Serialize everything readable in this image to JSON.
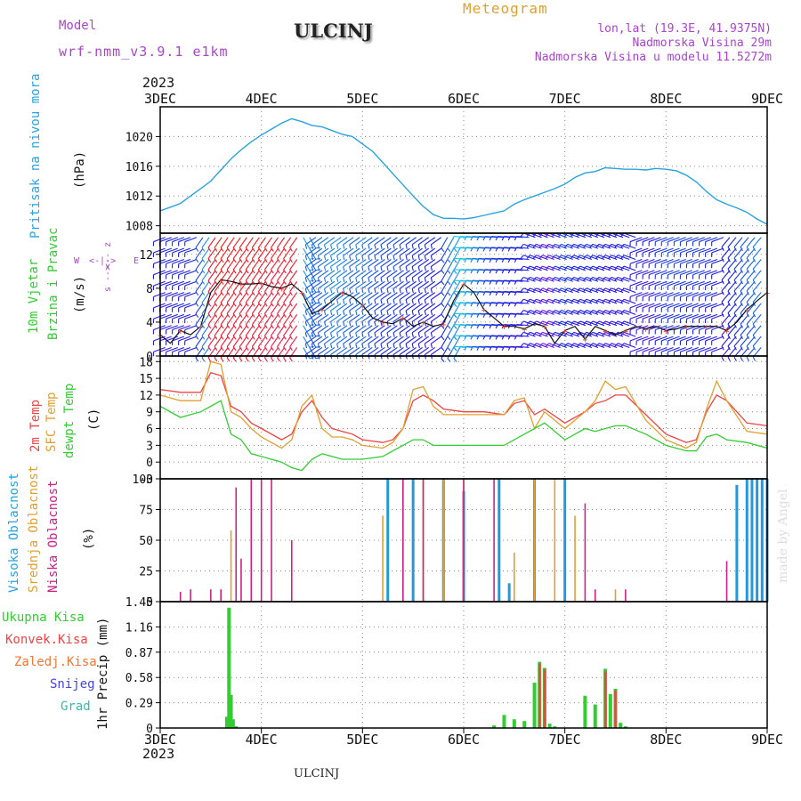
{
  "header": {
    "model_label": "Model",
    "model_name": "wrf-nmm_v3.9.1 e1km",
    "station": "ULCINJ",
    "meteogram": "Meteogram",
    "lonlat": "lon,lat (19.3E, 41.9375N)",
    "elevation": "Nadmorska Visina 29m",
    "model_elevation": "Nadmorska Visina u modelu 11.5272m"
  },
  "footer": {
    "station": "ULCINJ",
    "credit": "made by Angel"
  },
  "colors": {
    "pressure": "#29a3e0",
    "wind_label": "#33cc33",
    "temp2m": "#ee4444",
    "sfc": "#e0a030",
    "dew": "#33cc33",
    "high": "#2299dd",
    "mid": "#e0a030",
    "low": "#cc2288",
    "total": "#33cc33",
    "conv": "#ee4444",
    "frozen": "#ee7733",
    "snow": "#4444dd",
    "grad": "#33bbaa",
    "direction": "#aa44cc"
  },
  "chart_data": [
    {
      "type": "line",
      "panel": "pressure",
      "ylabel": [
        "Pritisak na nivou mora",
        "(hPa)"
      ],
      "x_ticks": [
        "3DEC",
        "4DEC",
        "5DEC",
        "6DEC",
        "7DEC",
        "8DEC",
        "9DEC"
      ],
      "x_year": "2023",
      "xlim": [
        0,
        6
      ],
      "ylim": [
        1007,
        1024
      ],
      "y_ticks": [
        1008,
        1012,
        1016,
        1020
      ],
      "series": [
        {
          "x": [
            0,
            0.1,
            0.2,
            0.3,
            0.4,
            0.5,
            0.6,
            0.7,
            0.8,
            0.9,
            1.0,
            1.1,
            1.2,
            1.3,
            1.4,
            1.5,
            1.6,
            1.7,
            1.8,
            1.9,
            2.0,
            2.1,
            2.2,
            2.3,
            2.4,
            2.5,
            2.6,
            2.7,
            2.8,
            2.9,
            3.0,
            3.1,
            3.2,
            3.3,
            3.4,
            3.5,
            3.6,
            3.7,
            3.8,
            3.9,
            4.0,
            4.1,
            4.2,
            4.3,
            4.4,
            4.5,
            4.6,
            4.7,
            4.8,
            4.9,
            5.0,
            5.1,
            5.2,
            5.3,
            5.4,
            5.5,
            5.6,
            5.7,
            5.8,
            5.9,
            6.0
          ],
          "y": [
            1010,
            1010.5,
            1011,
            1012,
            1013,
            1014,
            1015.5,
            1017,
            1018.2,
            1019.3,
            1020.2,
            1021,
            1021.8,
            1022.4,
            1022,
            1021.5,
            1021.3,
            1020.8,
            1020.3,
            1020,
            1019,
            1018,
            1016.5,
            1015,
            1013.5,
            1012,
            1010.6,
            1009.5,
            1009,
            1009,
            1008.9,
            1009.1,
            1009.4,
            1009.7,
            1010,
            1010.9,
            1011.5,
            1012,
            1012.5,
            1013,
            1013.6,
            1014.5,
            1015.1,
            1015.3,
            1015.8,
            1015.7,
            1015.6,
            1015.6,
            1015.5,
            1015.7,
            1015.6,
            1015.4,
            1014.8,
            1013.9,
            1012.6,
            1011.5,
            1010.9,
            1010.4,
            1009.8,
            1008.9,
            1008.2
          ]
        }
      ]
    },
    {
      "type": "line",
      "panel": "wind",
      "ylabel": [
        "10m Vjetar",
        "Brzina i Pravac",
        "(m/s)"
      ],
      "compass": {
        "top": "<-- z",
        "left": "W",
        "right": "E",
        "mid": "<-|->",
        "bottom": "s -->"
      },
      "ylim": [
        0,
        14.5
      ],
      "y_ticks": [
        0,
        4,
        8,
        12
      ],
      "series": [
        {
          "name": "speed",
          "x": [
            0,
            0.1,
            0.2,
            0.3,
            0.4,
            0.5,
            0.6,
            0.7,
            0.8,
            0.9,
            1.0,
            1.1,
            1.2,
            1.3,
            1.4,
            1.5,
            1.6,
            1.7,
            1.8,
            1.9,
            2.0,
            2.1,
            2.2,
            2.3,
            2.4,
            2.5,
            2.6,
            2.7,
            2.8,
            2.9,
            3.0,
            3.1,
            3.2,
            3.3,
            3.4,
            3.5,
            3.6,
            3.7,
            3.8,
            3.9,
            4.0,
            4.1,
            4.2,
            4.3,
            4.4,
            4.5,
            4.6,
            4.7,
            4.8,
            4.9,
            5.0,
            5.1,
            5.2,
            5.3,
            5.4,
            5.5,
            5.6,
            5.7,
            5.8,
            5.9,
            6.0
          ],
          "y": [
            2.5,
            1.5,
            3.0,
            2.5,
            3.5,
            7.5,
            9.0,
            8.8,
            8.5,
            8.5,
            8.6,
            8.2,
            8.0,
            8.5,
            7.5,
            5.0,
            5.5,
            6.5,
            7.5,
            7.0,
            6.0,
            4.5,
            4.0,
            3.8,
            4.5,
            3.5,
            4.0,
            3.5,
            3.8,
            6.5,
            8.5,
            7.5,
            5.5,
            4.5,
            3.5,
            3.5,
            3.2,
            3.8,
            3.5,
            1.5,
            3.0,
            3.5,
            2.0,
            3.5,
            3.0,
            2.5,
            3.0,
            3.5,
            3.2,
            3.5,
            3.0,
            3.2,
            3.5,
            3.5,
            3.5,
            3.5,
            3.0,
            4.0,
            5.5,
            6.5,
            7.5
          ]
        }
      ]
    },
    {
      "type": "line",
      "panel": "temperature",
      "ylabel": [
        "2m Temp",
        "SFC Temp",
        "dewpt Temp",
        "(C)"
      ],
      "ylim": [
        -3,
        19
      ],
      "y_ticks": [
        -3,
        0,
        3,
        6,
        9,
        12,
        15,
        18
      ],
      "series": [
        {
          "name": "2m Temp",
          "x": [
            0,
            0.2,
            0.4,
            0.5,
            0.6,
            0.7,
            0.8,
            0.9,
            1.0,
            1.2,
            1.3,
            1.4,
            1.5,
            1.6,
            1.7,
            1.8,
            1.9,
            2.0,
            2.2,
            2.3,
            2.4,
            2.5,
            2.6,
            2.7,
            2.8,
            3.0,
            3.2,
            3.4,
            3.5,
            3.6,
            3.7,
            3.8,
            4.0,
            4.2,
            4.3,
            4.4,
            4.5,
            4.6,
            4.8,
            5.0,
            5.2,
            5.3,
            5.4,
            5.5,
            5.6,
            5.8,
            6.0
          ],
          "y": [
            13,
            12.5,
            12.5,
            16,
            15.5,
            10,
            9,
            7,
            6,
            4,
            5,
            9,
            11,
            8,
            6,
            5.5,
            5,
            4,
            3.5,
            4,
            6,
            11,
            12,
            11,
            9.5,
            9,
            9,
            8.5,
            10.5,
            11,
            8.5,
            9.5,
            7,
            9,
            10.5,
            11,
            12,
            12,
            8.5,
            5,
            3.5,
            4,
            9,
            12,
            11,
            7,
            6.5
          ]
        },
        {
          "name": "SFC Temp",
          "x": [
            0,
            0.2,
            0.4,
            0.5,
            0.6,
            0.7,
            0.8,
            0.9,
            1.0,
            1.2,
            1.3,
            1.4,
            1.5,
            1.6,
            1.7,
            1.8,
            1.9,
            2.0,
            2.2,
            2.3,
            2.4,
            2.5,
            2.6,
            2.7,
            2.8,
            3.0,
            3.2,
            3.4,
            3.5,
            3.6,
            3.7,
            3.8,
            4.0,
            4.2,
            4.3,
            4.4,
            4.5,
            4.6,
            4.8,
            5.0,
            5.2,
            5.3,
            5.4,
            5.5,
            5.6,
            5.8,
            6.0
          ],
          "y": [
            12,
            11,
            11,
            18,
            17.5,
            9,
            8,
            6,
            4.5,
            2.5,
            4,
            10,
            12,
            6,
            4.5,
            4.5,
            4,
            3,
            2.5,
            3.5,
            6,
            13,
            13.5,
            10,
            8.5,
            8.5,
            8.5,
            8.5,
            11,
            11.5,
            6,
            9,
            6,
            9,
            11,
            14.5,
            13,
            13.5,
            7.5,
            4,
            2.5,
            3.5,
            9.5,
            14.5,
            11,
            5.5,
            5
          ]
        },
        {
          "name": "dewpt Temp",
          "x": [
            0,
            0.2,
            0.4,
            0.5,
            0.6,
            0.7,
            0.8,
            0.9,
            1.0,
            1.2,
            1.3,
            1.4,
            1.5,
            1.6,
            1.7,
            1.8,
            1.9,
            2.0,
            2.2,
            2.3,
            2.4,
            2.5,
            2.6,
            2.7,
            2.8,
            3.0,
            3.2,
            3.4,
            3.5,
            3.6,
            3.7,
            3.8,
            4.0,
            4.2,
            4.3,
            4.4,
            4.5,
            4.6,
            4.8,
            5.0,
            5.2,
            5.3,
            5.4,
            5.5,
            5.6,
            5.8,
            6.0
          ],
          "y": [
            10,
            8,
            9,
            10,
            11,
            5,
            4,
            1.5,
            1,
            0,
            -1,
            -1.5,
            0.5,
            1.5,
            1,
            0.5,
            0.5,
            0.5,
            1,
            2,
            3,
            4,
            4,
            3,
            3,
            3,
            3,
            3,
            4,
            5,
            6,
            7,
            4,
            6,
            5.5,
            6,
            6.5,
            6.5,
            5,
            3,
            2,
            2,
            4.5,
            5,
            4,
            3.5,
            2.5
          ]
        }
      ]
    },
    {
      "type": "bar",
      "panel": "clouds",
      "ylabel": [
        "Visoka Oblacnost",
        "Srednja Oblacnost",
        "Niska Oblacnost",
        "(%)"
      ],
      "ylim": [
        0,
        100
      ],
      "y_ticks": [
        0,
        25,
        50,
        75,
        100
      ],
      "series": [
        {
          "name": "Visoka Oblacnost",
          "x": [
            2.25,
            2.5,
            2.8,
            3.0,
            3.35,
            3.45,
            3.7,
            4.0,
            5.7,
            5.8,
            5.85,
            5.9,
            5.95,
            6.0
          ],
          "values": [
            100,
            100,
            100,
            90,
            100,
            15,
            100,
            100,
            95,
            100,
            100,
            100,
            100,
            100
          ]
        },
        {
          "name": "Srednja Oblacnost",
          "x": [
            0.7,
            2.2,
            2.4,
            2.6,
            2.8,
            3.0,
            3.5,
            3.7,
            3.9,
            4.1,
            4.5
          ],
          "values": [
            58,
            70,
            100,
            100,
            100,
            100,
            40,
            100,
            100,
            70,
            10
          ]
        },
        {
          "name": "Niska Oblacnost",
          "x": [
            0.2,
            0.3,
            0.5,
            0.6,
            0.75,
            0.8,
            0.9,
            1.0,
            1.1,
            1.3,
            2.4,
            2.6,
            3.0,
            3.3,
            4.2,
            4.3,
            4.6,
            5.6
          ],
          "values": [
            8,
            10,
            10,
            10,
            93,
            35,
            100,
            100,
            100,
            50,
            100,
            100,
            100,
            100,
            80,
            10,
            10,
            33
          ]
        }
      ]
    },
    {
      "type": "bar",
      "panel": "precipitation",
      "ylabel": [
        "1hr Precip (mm)"
      ],
      "legend": [
        "Ukupna Kisa",
        "Konvek.Kisa",
        "Zaledj.Kisa",
        "Snijeg",
        "Grad"
      ],
      "ylim": [
        0,
        1.45
      ],
      "y_ticks": [
        0,
        0.29,
        0.58,
        0.87,
        1.16,
        1.45
      ],
      "series": [
        {
          "name": "Ukupna Kisa",
          "x": [
            0.66,
            0.68,
            0.7,
            0.72,
            0.75,
            3.3,
            3.4,
            3.5,
            3.6,
            3.7,
            3.75,
            3.8,
            3.85,
            3.9,
            4.2,
            4.3,
            4.4,
            4.45,
            4.5,
            4.55,
            4.6
          ],
          "values": [
            0.13,
            1.38,
            0.38,
            0.1,
            0.02,
            0.03,
            0.15,
            0.1,
            0.08,
            0.52,
            0.76,
            0.69,
            0.05,
            0.02,
            0.37,
            0.27,
            0.68,
            0.39,
            0.45,
            0.06,
            0.02
          ]
        },
        {
          "name": "Konvek.Kisa",
          "x": [
            3.75,
            3.8,
            4.4,
            4.5
          ],
          "values": [
            0.74,
            0.67,
            0.65,
            0.43
          ]
        }
      ]
    }
  ]
}
